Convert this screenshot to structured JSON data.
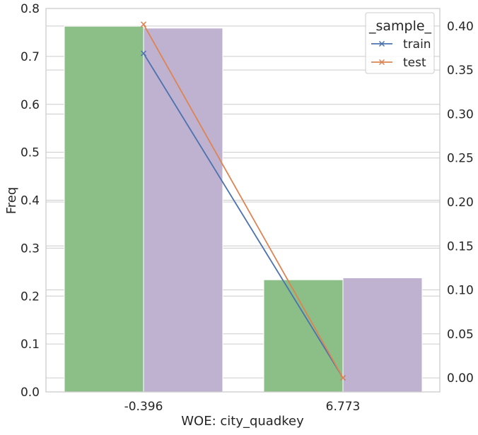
{
  "chart_data": {
    "type": "bar",
    "categories": [
      "-0.396",
      "6.773"
    ],
    "xlabel": "WOE: city_quadkey",
    "ylabel": "Freq",
    "ylim": [
      0,
      0.8
    ],
    "yticks": [
      "0.0",
      "0.1",
      "0.2",
      "0.3",
      "0.4",
      "0.5",
      "0.6",
      "0.7",
      "0.8"
    ],
    "bar_series": [
      {
        "key": "train",
        "values": [
          0.763,
          0.234
        ],
        "color": "#8bbf87"
      },
      {
        "key": "test",
        "values": [
          0.759,
          0.238
        ],
        "color": "#bfb1d0"
      }
    ],
    "secondary_axis": {
      "ylim": [
        -0.016,
        0.42
      ],
      "yticks": [
        "0.00",
        "0.05",
        "0.10",
        "0.15",
        "0.20",
        "0.25",
        "0.30",
        "0.35",
        "0.40"
      ]
    },
    "line_series": [
      {
        "name": "train",
        "values": [
          0.369,
          0.0
        ],
        "color": "#4c72b0",
        "marker": "x"
      },
      {
        "name": "test",
        "values": [
          0.402,
          0.0
        ],
        "color": "#dd8452",
        "marker": "x"
      }
    ],
    "legend": {
      "title": "_sample_",
      "position": "upper right",
      "entries": [
        "train",
        "test"
      ]
    },
    "grid": true
  }
}
